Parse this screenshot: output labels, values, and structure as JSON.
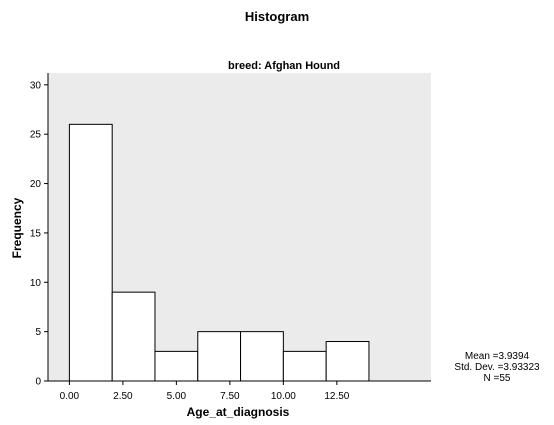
{
  "chart_data": {
    "type": "bar",
    "title": "Histogram",
    "subtitle": "breed: Afghan Hound",
    "xlabel": "Age_at_diagnosis",
    "ylabel": "Frequency",
    "bins": [
      {
        "start": 0,
        "end": 2,
        "count": 26
      },
      {
        "start": 2,
        "end": 4,
        "count": 9
      },
      {
        "start": 4,
        "end": 6,
        "count": 3
      },
      {
        "start": 6,
        "end": 8,
        "count": 5
      },
      {
        "start": 8,
        "end": 10,
        "count": 5
      },
      {
        "start": 10,
        "end": 12,
        "count": 3
      },
      {
        "start": 12,
        "end": 14,
        "count": 4
      }
    ],
    "xlim": [
      -1,
      16.9
    ],
    "ylim": [
      0,
      31.2
    ],
    "xticks": [
      0,
      2.5,
      5,
      7.5,
      10,
      12.5
    ],
    "xtick_labels": [
      "0.00",
      "2.50",
      "5.00",
      "7.50",
      "10.00",
      "12.50"
    ],
    "yticks": [
      0,
      5,
      10,
      15,
      20,
      25,
      30
    ],
    "ytick_labels": [
      "0",
      "5",
      "10",
      "15",
      "20",
      "25",
      "30"
    ],
    "grid": false,
    "stats": {
      "mean": "Mean =3.9394",
      "std": "Std. Dev. =3.93323",
      "n": "N =55"
    },
    "colors": {
      "plot_background": "#ebebeb",
      "bar_fill": "#ffffff",
      "bar_stroke": "#000000"
    }
  }
}
